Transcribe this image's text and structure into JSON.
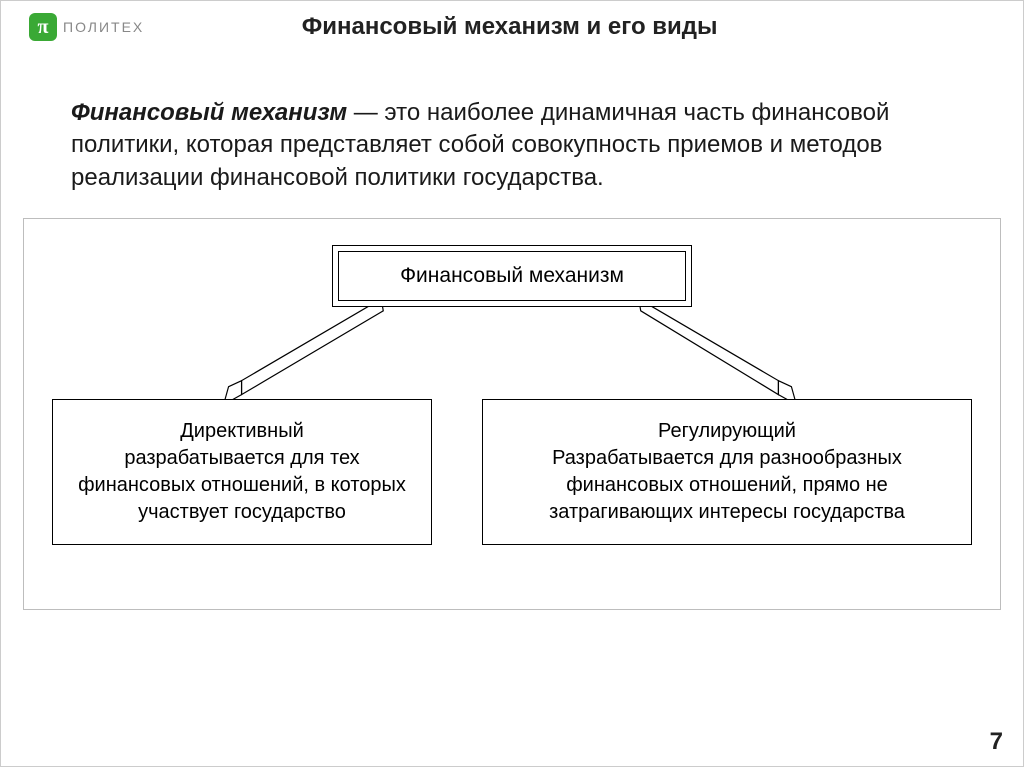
{
  "logo": {
    "symbol": "π",
    "text": "ПОЛИТЕХ",
    "bg_color": "#3aa935"
  },
  "title": "Финансовый механизм и его виды",
  "definition": {
    "term": "Финансовый механизм",
    "body": " — это наиболее динамичная часть финансовой политики, которая представляет собой совокупность приемов и методов реализации финансовой политики государства."
  },
  "diagram": {
    "root": "Финансовый  механизм",
    "left": "Директивный\nразрабатывается для тех финансовых отношений, в которых участвует государство",
    "right": "Регулирующий\nРазрабатывается для разнообразных финансовых отношений, прямо не затрагивающих интересы государства",
    "box_border_color": "#000000",
    "arrow_color": "#000000",
    "arrow_fill": "#ffffff",
    "frame_border_color": "#bdbdbd"
  },
  "page_number": "7",
  "colors": {
    "background": "#ffffff",
    "text": "#1a1a1a",
    "title": "#222222"
  },
  "typography": {
    "title_fontsize": 24,
    "body_fontsize": 24,
    "box_fontsize": 20,
    "root_fontsize": 21
  }
}
